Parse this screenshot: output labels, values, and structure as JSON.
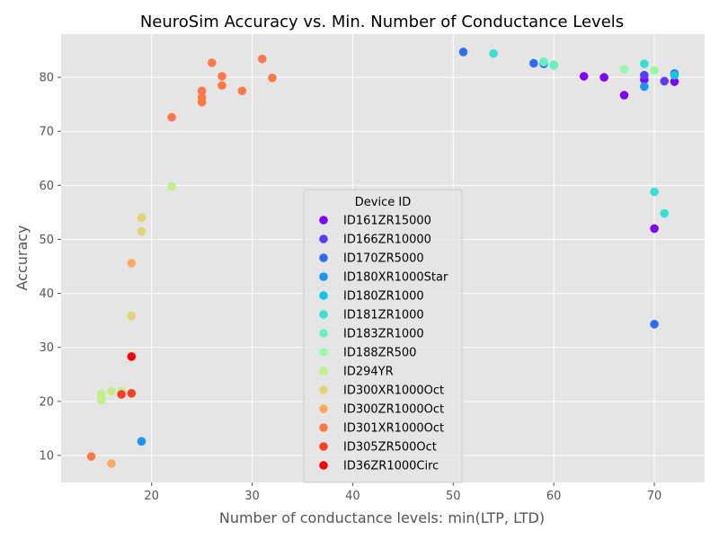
{
  "chart_data": {
    "type": "scatter",
    "title": "NeuroSim Accuracy vs. Min. Number of Conductance Levels",
    "xlabel": "Number of conductance levels: min(LTP, LTD)",
    "ylabel": "Accuracy",
    "xlim": [
      11,
      75
    ],
    "ylim": [
      5,
      88
    ],
    "xticks": [
      20,
      30,
      40,
      50,
      60,
      70
    ],
    "yticks": [
      10,
      20,
      30,
      40,
      50,
      60,
      70,
      80
    ],
    "grid": true,
    "legend_title": "Device ID",
    "legend_position": "center",
    "series": [
      {
        "name": "ID161ZR15000",
        "color": "#8000ff",
        "points": [
          [
            63,
            80.2
          ],
          [
            65,
            80.0
          ],
          [
            67,
            76.7
          ],
          [
            69,
            79.6
          ],
          [
            70,
            52.0
          ],
          [
            72,
            79.2
          ]
        ]
      },
      {
        "name": "ID166ZR10000",
        "color": "#5a3dfa",
        "points": [
          [
            69,
            80.4
          ],
          [
            71,
            79.3
          ]
        ]
      },
      {
        "name": "ID170ZR5000",
        "color": "#2f6cf5",
        "points": [
          [
            51,
            84.7
          ],
          [
            58,
            82.6
          ],
          [
            59,
            82.5
          ],
          [
            72,
            80.7
          ],
          [
            70,
            34.3
          ]
        ]
      },
      {
        "name": "ID180XR1000Star",
        "color": "#1996f3",
        "points": [
          [
            69,
            78.3
          ],
          [
            19,
            12.6
          ]
        ]
      },
      {
        "name": "ID180ZR1000",
        "color": "#13c4e6",
        "points": [
          [
            72,
            80.4
          ]
        ]
      },
      {
        "name": "ID181ZR1000",
        "color": "#3adfd3",
        "points": [
          [
            54,
            84.4
          ],
          [
            59,
            82.8
          ],
          [
            60,
            82.3
          ],
          [
            69,
            82.5
          ],
          [
            70,
            58.8
          ],
          [
            71,
            54.8
          ]
        ]
      },
      {
        "name": "ID183ZR1000",
        "color": "#66f2bf",
        "points": [
          [
            60,
            82.2
          ],
          [
            59,
            82.9
          ]
        ]
      },
      {
        "name": "ID188ZR500",
        "color": "#94fba4",
        "points": [
          [
            67,
            81.5
          ],
          [
            70,
            81.3
          ]
        ]
      },
      {
        "name": "ID294YR",
        "color": "#c0f08a",
        "points": [
          [
            22,
            59.8
          ],
          [
            15,
            21.4
          ],
          [
            15,
            20.9
          ],
          [
            15,
            20.2
          ],
          [
            16,
            21.9
          ],
          [
            17,
            21.9
          ]
        ]
      },
      {
        "name": "ID300XR1000Oct",
        "color": "#e6d078",
        "points": [
          [
            19,
            54.0
          ],
          [
            19,
            51.5
          ],
          [
            18,
            35.8
          ]
        ]
      },
      {
        "name": "ID300ZR1000Oct",
        "color": "#fbaa5c",
        "points": [
          [
            18,
            45.6
          ],
          [
            16,
            8.5
          ]
        ]
      },
      {
        "name": "ID301XR1000Oct",
        "color": "#ff7848",
        "points": [
          [
            26,
            82.7
          ],
          [
            31,
            83.4
          ],
          [
            27,
            80.2
          ],
          [
            32,
            79.9
          ],
          [
            25,
            77.5
          ],
          [
            25,
            76.3
          ],
          [
            25,
            75.4
          ],
          [
            27,
            78.5
          ],
          [
            29,
            77.5
          ],
          [
            22,
            72.6
          ],
          [
            14,
            9.8
          ]
        ]
      },
      {
        "name": "ID305ZR500Oct",
        "color": "#ff3f24",
        "points": [
          [
            17,
            21.3
          ],
          [
            18,
            21.5
          ]
        ]
      },
      {
        "name": "ID36ZR1000Circ",
        "color": "#ff0000",
        "points": [
          [
            18,
            28.3
          ]
        ]
      }
    ]
  }
}
